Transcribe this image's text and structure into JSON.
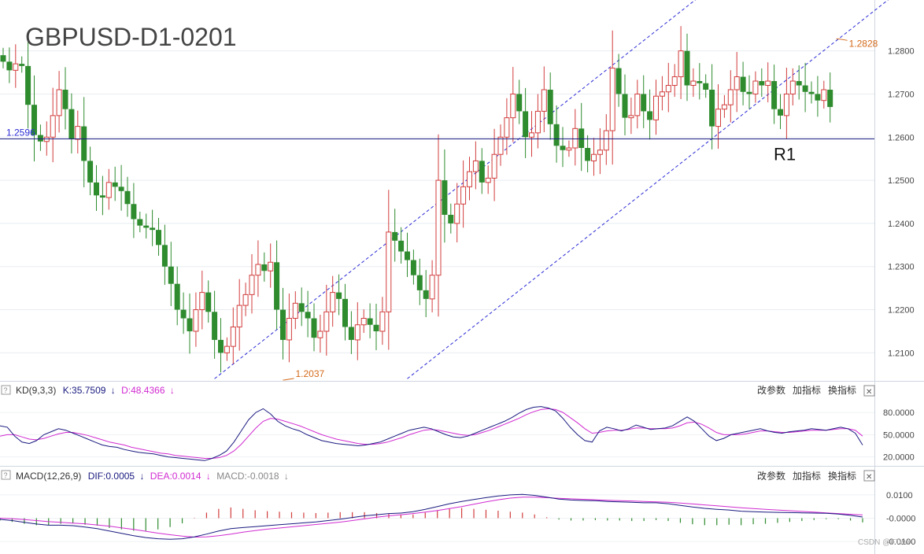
{
  "title": "GBPUSD-D1-0201",
  "watermark": "CSDN @FTwo",
  "colors": {
    "up_candle": "#d23c3c",
    "down_candle": "#2e8b2e",
    "channel": "#2b2bd6",
    "support": "#1a1a80",
    "annotation": "#d46a1a",
    "kd_k": "#1a1a80",
    "kd_d": "#d12bd1",
    "macd_dif": "#1a1a80",
    "macd_dea": "#d12bd1",
    "hist_pos": "#d23c3c",
    "hist_neg": "#2e8b2e"
  },
  "panel_buttons": {
    "params": "改参数",
    "add": "加指标",
    "switch": "换指标",
    "close": "✕",
    "help": "?"
  },
  "kd": {
    "name": "KD(9,3,3)",
    "k_label": "K:35.7509",
    "d_label": "D:48.4366",
    "arrow": "↓"
  },
  "macd": {
    "name": "MACD(12,26,9)",
    "dif_label": "DIF:0.0005",
    "dea_label": "DEA:0.0014",
    "macd_label": "MACD:-0.0018",
    "arrow": "↓"
  },
  "chart_data": {
    "type": "candlestick",
    "title": "GBPUSD-D1-0201",
    "price_axis": {
      "ylim": [
        1.2035,
        1.2845
      ],
      "ticks": [
        "1.2800",
        "1.2700",
        "1.2600",
        "1.2500",
        "1.2400",
        "1.2300",
        "1.2200",
        "1.2100"
      ]
    },
    "support": {
      "value": 1.2596,
      "label": "1.2596",
      "name": "R1"
    },
    "annotations": [
      {
        "text": "1.2037",
        "price": 1.2037,
        "index": 45
      },
      {
        "text": "1.2828",
        "price": 1.2828,
        "index": 134
      }
    ],
    "channel": {
      "upper": [
        {
          "index": 34,
          "price": 1.204
        },
        {
          "index": 115,
          "price": 1.296
        }
      ],
      "lower": [
        {
          "index": 65,
          "price": 1.204
        },
        {
          "index": 146,
          "price": 1.296
        }
      ]
    },
    "close_start": 1.279,
    "closes": [
      1.2775,
      1.2755,
      1.277,
      1.2765,
      1.2675,
      1.2605,
      1.259,
      1.26,
      1.265,
      1.271,
      1.2665,
      1.2595,
      1.2625,
      1.2545,
      1.2495,
      1.2465,
      1.246,
      1.2495,
      1.2485,
      1.2475,
      1.2445,
      1.241,
      1.2395,
      1.239,
      1.2385,
      1.235,
      1.23,
      1.226,
      1.22,
      1.218,
      1.215,
      1.22,
      1.224,
      1.2195,
      1.213,
      1.21,
      1.2115,
      1.216,
      1.221,
      1.2235,
      1.228,
      1.2305,
      1.229,
      1.231,
      1.22,
      1.213,
      1.218,
      1.2215,
      1.2195,
      1.218,
      1.2135,
      1.215,
      1.2195,
      1.224,
      1.2225,
      1.216,
      1.213,
      1.2165,
      1.218,
      1.2165,
      1.215,
      1.2195,
      1.238,
      1.236,
      1.2335,
      1.2315,
      1.228,
      1.2245,
      1.2225,
      1.228,
      1.25,
      1.242,
      1.24,
      1.2445,
      1.2485,
      1.252,
      1.2545,
      1.2495,
      1.2505,
      1.256,
      1.26,
      1.2645,
      1.27,
      1.266,
      1.26,
      1.261,
      1.266,
      1.271,
      1.263,
      1.258,
      1.257,
      1.2575,
      1.262,
      1.2575,
      1.2545,
      1.256,
      1.257,
      1.2615,
      1.276,
      1.27,
      1.2645,
      1.265,
      1.27,
      1.266,
      1.264,
      1.2695,
      1.2705,
      1.272,
      1.274,
      1.28,
      1.272,
      1.273,
      1.2725,
      1.271,
      1.2625,
      1.2665,
      1.2675,
      1.271,
      1.274,
      1.2705,
      1.27,
      1.273,
      1.272,
      1.273,
      1.2665,
      1.265,
      1.27,
      1.273,
      1.272,
      1.2705,
      1.27,
      1.2685,
      1.271,
      1.267
    ],
    "kd": {
      "ylim": [
        10,
        95
      ],
      "ticks": [
        "80.0000",
        "50.0000",
        "20.0000"
      ],
      "k": [
        62,
        60,
        48,
        40,
        38,
        42,
        50,
        54,
        58,
        56,
        52,
        48,
        44,
        40,
        36,
        34,
        33,
        30,
        28,
        26,
        25,
        24,
        22,
        20,
        19,
        18,
        17,
        16,
        15,
        18,
        22,
        28,
        40,
        55,
        70,
        80,
        85,
        78,
        68,
        62,
        58,
        55,
        50,
        46,
        42,
        40,
        38,
        37,
        36,
        35,
        36,
        38,
        40,
        44,
        48,
        52,
        56,
        58,
        60,
        58,
        54,
        50,
        47,
        46,
        48,
        52,
        56,
        60,
        64,
        68,
        73,
        79,
        84,
        87,
        88,
        86,
        82,
        72,
        60,
        50,
        42,
        40,
        55,
        60,
        58,
        55,
        58,
        63,
        60,
        57,
        58,
        59,
        62,
        68,
        74,
        68,
        58,
        48,
        42,
        45,
        50,
        52,
        54,
        56,
        58,
        55,
        53,
        52,
        54,
        55,
        56,
        58,
        57,
        56,
        58,
        60,
        58,
        52,
        36
      ],
      "d": [
        48,
        50,
        50,
        47,
        44,
        43,
        45,
        48,
        51,
        53,
        53,
        51,
        49,
        46,
        43,
        40,
        38,
        36,
        33,
        31,
        29,
        27,
        25,
        24,
        22,
        21,
        20,
        19,
        18,
        18,
        19,
        22,
        28,
        37,
        48,
        59,
        68,
        72,
        71,
        68,
        65,
        62,
        58,
        54,
        50,
        47,
        44,
        42,
        40,
        38,
        37,
        37,
        38,
        40,
        43,
        46,
        50,
        53,
        56,
        57,
        56,
        54,
        52,
        50,
        49,
        50,
        53,
        56,
        60,
        64,
        68,
        72,
        77,
        81,
        84,
        85,
        84,
        80,
        73,
        66,
        58,
        52,
        53,
        55,
        56,
        56,
        57,
        59,
        59,
        58,
        58,
        58,
        59,
        62,
        66,
        67,
        64,
        59,
        53,
        50,
        50,
        50,
        51,
        53,
        55,
        55,
        54,
        53,
        53,
        54,
        55,
        56,
        56,
        56,
        57,
        58,
        58,
        56,
        48
      ]
    },
    "macd": {
      "ylim": [
        -0.014,
        0.014
      ],
      "ticks": [
        "0.0100",
        "-0.0000",
        "-0.0100"
      ],
      "dif": [
        -0.0005,
        -0.001,
        -0.0018,
        -0.0025,
        -0.003,
        -0.003,
        -0.0032,
        -0.0038,
        -0.0045,
        -0.0055,
        -0.0065,
        -0.0075,
        -0.0083,
        -0.0088,
        -0.009,
        -0.0088,
        -0.008,
        -0.0068,
        -0.0055,
        -0.0045,
        -0.004,
        -0.0036,
        -0.0032,
        -0.0028,
        -0.0024,
        -0.002,
        -0.0016,
        -0.001,
        -0.0004,
        0.0003,
        0.001,
        0.0015,
        0.002,
        0.0022,
        0.0028,
        0.0038,
        0.005,
        0.0062,
        0.0072,
        0.008,
        0.0088,
        0.0095,
        0.01,
        0.0102,
        0.0098,
        0.009,
        0.0082,
        0.0078,
        0.0076,
        0.0075,
        0.0072,
        0.007,
        0.0068,
        0.0066,
        0.0066,
        0.0062,
        0.0055,
        0.0048,
        0.0042,
        0.0038,
        0.0035,
        0.003,
        0.0028,
        0.0026,
        0.0025,
        0.0024,
        0.0023,
        0.0022,
        0.0021,
        0.0018,
        0.0012,
        0.0005
      ],
      "dea": [
        0.0,
        -0.0002,
        -0.0006,
        -0.001,
        -0.0015,
        -0.0018,
        -0.0021,
        -0.0024,
        -0.0029,
        -0.0034,
        -0.0041,
        -0.0048,
        -0.0056,
        -0.0064,
        -0.0071,
        -0.0077,
        -0.0081,
        -0.008,
        -0.0075,
        -0.0068,
        -0.006,
        -0.0053,
        -0.0047,
        -0.0042,
        -0.0037,
        -0.0032,
        -0.0027,
        -0.0022,
        -0.0017,
        -0.001,
        -0.0003,
        0.0004,
        0.001,
        0.0015,
        0.002,
        0.0026,
        0.0033,
        0.0041,
        0.005,
        0.006,
        0.007,
        0.0079,
        0.0086,
        0.009,
        0.009,
        0.0088,
        0.0085,
        0.0083,
        0.0081,
        0.0079,
        0.0077,
        0.0075,
        0.0074,
        0.0072,
        0.007,
        0.0068,
        0.0065,
        0.0061,
        0.0057,
        0.0053,
        0.0049,
        0.0045,
        0.0041,
        0.0038,
        0.0035,
        0.0032,
        0.0029,
        0.0026,
        0.0023,
        0.002,
        0.0017,
        0.0014
      ]
    }
  }
}
